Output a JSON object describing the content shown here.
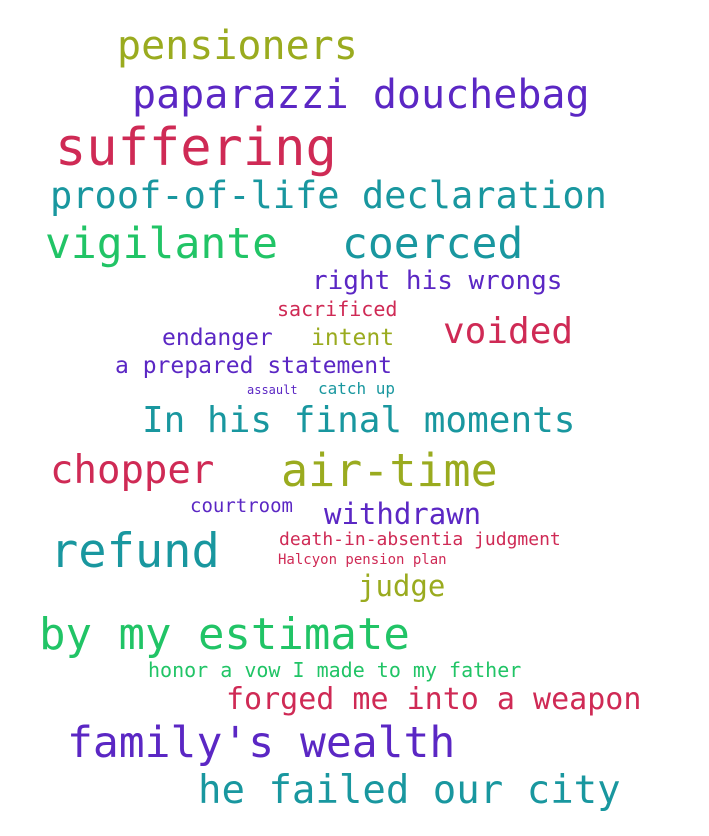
{
  "word_cloud": {
    "words": [
      {
        "text": "pensioners"
      },
      {
        "text": "paparazzi douchebag"
      },
      {
        "text": "suffering"
      },
      {
        "text": "proof-of-life declaration"
      },
      {
        "text": "vigilante"
      },
      {
        "text": "coerced"
      },
      {
        "text": "right his wrongs"
      },
      {
        "text": "sacrificed"
      },
      {
        "text": "endanger"
      },
      {
        "text": "intent"
      },
      {
        "text": "voided"
      },
      {
        "text": "a prepared statement"
      },
      {
        "text": "assault"
      },
      {
        "text": "catch up"
      },
      {
        "text": "In his final moments"
      },
      {
        "text": "chopper"
      },
      {
        "text": "air-time"
      },
      {
        "text": "courtroom"
      },
      {
        "text": "withdrawn"
      },
      {
        "text": "refund"
      },
      {
        "text": "death-in-absentia judgment"
      },
      {
        "text": "Halcyon pension plan"
      },
      {
        "text": "judge"
      },
      {
        "text": "by my estimate"
      },
      {
        "text": "honor a vow I made to my father"
      },
      {
        "text": "forged me into a weapon"
      },
      {
        "text": "family's wealth"
      },
      {
        "text": "he failed our city"
      }
    ]
  }
}
